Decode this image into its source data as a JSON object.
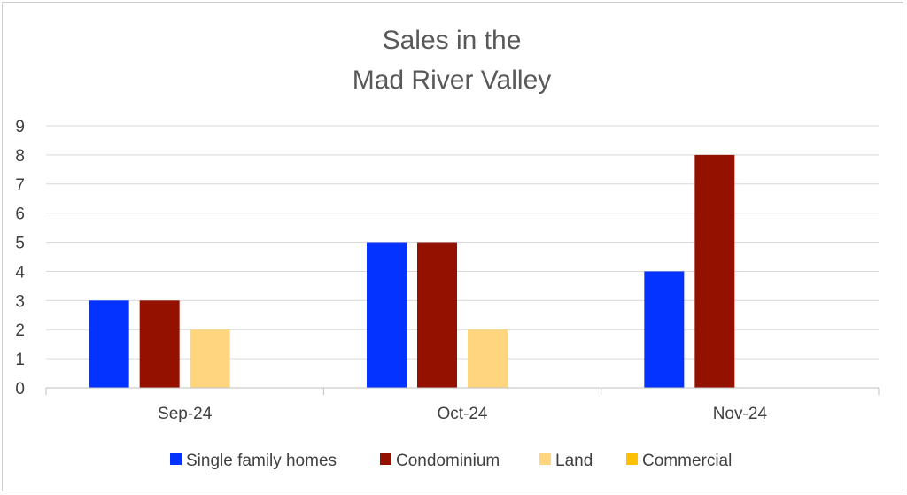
{
  "chart_data": {
    "type": "bar",
    "title": [
      "Sales in the",
      "Mad River Valley"
    ],
    "categories": [
      "Sep-24",
      "Oct-24",
      "Nov-24"
    ],
    "series": [
      {
        "name": "Single family homes",
        "color": "#0433ff",
        "values": [
          3,
          5,
          4
        ]
      },
      {
        "name": "Condominium",
        "color": "#941100",
        "values": [
          3,
          5,
          8
        ]
      },
      {
        "name": "Land",
        "color": "#ffd580",
        "values": [
          2,
          2,
          0
        ]
      },
      {
        "name": "Commercial",
        "color": "#ffc000",
        "values": [
          0,
          0,
          0
        ]
      }
    ],
    "ylim": [
      0,
      9
    ],
    "yticks": [
      0,
      1,
      2,
      3,
      4,
      5,
      6,
      7,
      8,
      9
    ],
    "grid": true,
    "legend": "bottom",
    "xlabel": "",
    "ylabel": ""
  }
}
